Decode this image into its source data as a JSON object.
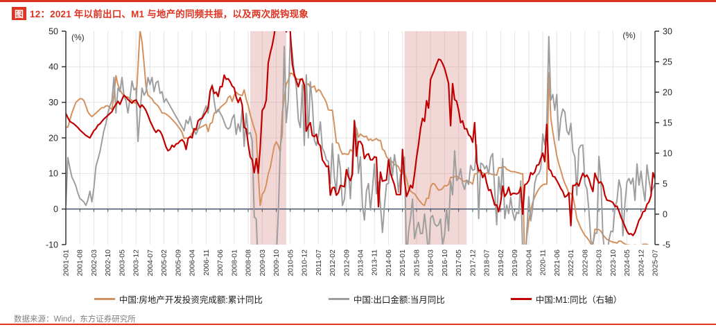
{
  "title": {
    "chip": "图",
    "text": "12：2021 年以前出口、M1 与地产的同频共振，以及两次脱钩现象"
  },
  "source": {
    "text": "数据来源：Wind，东方证券研究所"
  },
  "colors": {
    "accent_red": "#DF3321",
    "band_pink": "#D98C8C",
    "zero_line_navy": "#44546A",
    "grid_gray": "#E2E2E2",
    "axis_dark": "#333333",
    "series_orange": "#D4915D",
    "series_gray": "#9E9E9E",
    "series_red": "#C00000"
  },
  "legend": {
    "items": [
      {
        "label": "中国:房地产开发投资完成额:累计同比",
        "color": "#D4915D"
      },
      {
        "label": "中国:出口金额:当月同比",
        "color": "#9E9E9E"
      },
      {
        "label": "中国:M1:同比（右轴）",
        "color": "#C00000"
      }
    ]
  },
  "chart_data": {
    "type": "line",
    "title": "2021 年以前出口、M1 与地产的同频共振，以及两次脱钩现象",
    "x_start": "2001-01",
    "x_end": "2025-07",
    "x_tick_labels": [
      "2001-01",
      "2001-08",
      "2002-03",
      "2002-10",
      "2003-05",
      "2003-12",
      "2004-07",
      "2005-02",
      "2005-09",
      "2006-04",
      "2006-11",
      "2007-06",
      "2008-01",
      "2008-08",
      "2009-03",
      "2009-10",
      "2010-05",
      "2010-12",
      "2011-07",
      "2012-02",
      "2012-09",
      "2013-04",
      "2013-11",
      "2014-06",
      "2015-01",
      "2015-08",
      "2016-03",
      "2016-10",
      "2017-05",
      "2017-12",
      "2018-07",
      "2019-02",
      "2019-09",
      "2020-04",
      "2020-11",
      "2021-06",
      "2022-01",
      "2022-08",
      "2023-03",
      "2023-10",
      "2024-05",
      "2024-12",
      "2025-07"
    ],
    "left_axis": {
      "label": "(%)",
      "ticks": [
        50,
        40,
        30,
        20,
        10,
        0,
        -10
      ],
      "range": [
        -10,
        50
      ]
    },
    "right_axis": {
      "label": "(%)",
      "ticks": [
        30,
        25,
        20,
        15,
        10,
        5,
        0,
        -5
      ],
      "range": [
        -5,
        30
      ]
    },
    "grid": true,
    "legend_position": "bottom",
    "band_color": "#D98C8C",
    "shaded_bands": [
      {
        "from": "2008-09",
        "to": "2010-03"
      },
      {
        "from": "2015-02",
        "to": "2017-09"
      }
    ],
    "series": [
      {
        "name": "中国:房地产开发投资完成额:累计同比",
        "axis": "left",
        "color": "#D4915D",
        "width": 2,
        "values": [
          23,
          23,
          25,
          27,
          28.5,
          30,
          30.5,
          31,
          31,
          30.5,
          29,
          27.3,
          26.5,
          26,
          26.5,
          27,
          27.5,
          28,
          28.5,
          28.5,
          29,
          29,
          28.5,
          28,
          32,
          37.5,
          34.9,
          33.5,
          32.5,
          32,
          31.5,
          31.5,
          31,
          30.5,
          30,
          29.7,
          40,
          50.2,
          47,
          41,
          34.5,
          32,
          31.5,
          31,
          30,
          29.5,
          29,
          28.1,
          27,
          27,
          26.7,
          26.3,
          25.8,
          25.2,
          24.6,
          24,
          23.2,
          22.5,
          21.5,
          19.8,
          20,
          19.9,
          20.2,
          21.3,
          21.9,
          22.2,
          22.5,
          22.9,
          23.2,
          23.5,
          23.8,
          21.8,
          24,
          24.3,
          26.9,
          27.4,
          27.5,
          28.5,
          29,
          29.5,
          30,
          31.4,
          31.8,
          30.2,
          32,
          32.9,
          32.3,
          32.1,
          31.9,
          33.5,
          30.9,
          29.1,
          26.5,
          24.6,
          22.7,
          20.9,
          10,
          1,
          4.1,
          4.9,
          6.8,
          9.9,
          11.6,
          14.7,
          17.7,
          18.9,
          17.8,
          16.1,
          27,
          31.1,
          35.1,
          36.2,
          38.2,
          38.1,
          37.2,
          36.7,
          36.4,
          36.5,
          36.7,
          33.2,
          35,
          35.2,
          34.1,
          34.3,
          34.6,
          32.9,
          33.6,
          33.2,
          32,
          31.1,
          29.9,
          27.9,
          27.8,
          27.8,
          23.5,
          18.7,
          18.5,
          16.6,
          15.4,
          15.6,
          15.4,
          15.4,
          16.7,
          16.2,
          22.8,
          22.8,
          20.2,
          21.1,
          20.6,
          20.3,
          20.5,
          19.3,
          19.7,
          19.2,
          19.5,
          19.8,
          19.3,
          19.3,
          16.8,
          16.4,
          14.7,
          14.1,
          13.7,
          13.2,
          12.5,
          12.4,
          11.9,
          10.5,
          10.4,
          10.4,
          8.5,
          6,
          5.1,
          4.6,
          4.3,
          3.5,
          2.6,
          2,
          1.3,
          1,
          3,
          3,
          6.2,
          7.2,
          7,
          6.1,
          5.3,
          5.4,
          5.8,
          6.6,
          6.5,
          6.9,
          8.9,
          8.9,
          9.1,
          9.3,
          8.8,
          8.5,
          7.9,
          7.8,
          8.1,
          7.8,
          7.5,
          7,
          9.9,
          9.9,
          10.4,
          10.3,
          10.2,
          9.7,
          10.2,
          10.1,
          9.9,
          9.7,
          9.7,
          9.5,
          11.6,
          11.6,
          11.8,
          11.9,
          11.2,
          10.9,
          10.6,
          10.5,
          10.5,
          10.3,
          10.2,
          9.9,
          9.9,
          -16.3,
          -7.7,
          -3.3,
          -0.3,
          1.9,
          3.4,
          4.6,
          5.6,
          6.3,
          6.8,
          7,
          7,
          38.3,
          25.6,
          21.6,
          18.3,
          15,
          12.7,
          10.9,
          8.8,
          7.2,
          6,
          4.4,
          4.4,
          3.7,
          0.7,
          -2.7,
          -4,
          -5.4,
          -6.4,
          -7.4,
          -8,
          -8.8,
          -9.8,
          -10,
          -5.7,
          -5.7,
          -5.8,
          -6.2,
          -7.2,
          -7.9,
          -8.5,
          -8.8,
          -9.1,
          -9.3,
          -9.4,
          -9.6,
          -9,
          -9,
          -9.5,
          -9.8,
          -10.1,
          -10.1,
          -10.2,
          -10.2,
          -10.1,
          -10.3,
          -10.4,
          -10.6,
          -9.9,
          -9.9,
          -9.9,
          -10.3,
          -10.7,
          -11.2,
          -12
        ]
      },
      {
        "name": "中国:出口金额:当月同比",
        "axis": "left",
        "color": "#9E9E9E",
        "width": 2,
        "values": [
          1,
          14.5,
          11.5,
          9,
          7.8,
          6.5,
          4.5,
          3,
          2.5,
          2,
          1,
          2.5,
          5,
          2,
          6,
          12,
          14,
          16,
          19,
          22,
          24,
          27,
          29,
          30.5,
          37,
          27,
          34,
          33,
          37,
          32,
          30.5,
          27,
          31,
          36,
          33.5,
          34,
          19,
          27,
          34,
          32,
          33,
          37,
          35,
          37,
          33,
          35.5,
          36,
          32.5,
          33,
          30,
          31,
          30,
          29,
          28,
          27,
          26,
          25,
          24,
          23,
          22,
          25,
          24,
          26,
          23,
          22,
          21,
          22.5,
          24,
          26,
          27.5,
          29,
          27,
          33,
          35,
          30.5,
          27,
          28,
          27,
          26,
          24.5,
          23,
          22.5,
          23,
          25.5,
          26.5,
          21,
          24,
          21.8,
          28.1,
          17.6,
          26.9,
          21.1,
          21.5,
          19.2,
          -2.2,
          -2.8,
          -17.5,
          -25.7,
          -17.1,
          -22.6,
          -26.4,
          -21.4,
          -23,
          -23.4,
          -15.2,
          -13.8,
          -1.2,
          17.7,
          21,
          45.7,
          24.3,
          30.5,
          48.5,
          43.9,
          38.1,
          34.4,
          25.1,
          22.9,
          34.9,
          17.9,
          37.7,
          20,
          35.8,
          29.9,
          19.4,
          17.9,
          20.4,
          24.5,
          17.1,
          15.9,
          13.8,
          13.4,
          7,
          18.4,
          8.9,
          4.9,
          15.3,
          11.3,
          1,
          2.7,
          9.9,
          11.6,
          2.9,
          14.1,
          25,
          21.8,
          10,
          14.7,
          1,
          -3.1,
          5.1,
          7.2,
          -0.3,
          5.6,
          12.7,
          4.3,
          7.6,
          1,
          -6.6,
          0.9,
          7,
          7.2,
          14.5,
          9.4,
          15.3,
          11.6,
          4.7,
          9.7,
          9.8,
          14.6,
          -14.6,
          -6.4,
          -2.5,
          2.8,
          -8.3,
          -5.5,
          -3.7,
          -6.9,
          -6.8,
          -1.4,
          -6.6,
          -13,
          -2.5,
          -1.8,
          -4.1,
          -4.8,
          -4.4,
          -2.8,
          -10,
          -7.3,
          0.1,
          -6.1,
          7.9,
          4,
          16.4,
          8,
          8.7,
          11.3,
          7.2,
          5.5,
          8.1,
          6.9,
          12.3,
          10.9,
          11.1,
          18,
          -2.7,
          12.9,
          12.6,
          11.3,
          12.2,
          9.8,
          14.5,
          15.6,
          5.4,
          -4.4,
          9.1,
          4,
          14.2,
          -2.7,
          1.1,
          -1.3,
          3.3,
          -1,
          -3.2,
          -0.9,
          -1.3,
          7.9,
          -13,
          -17.2,
          -6.6,
          3.5,
          -3.3,
          0.5,
          7.2,
          9.5,
          9.9,
          11.4,
          21.1,
          18.1,
          24.8,
          48.5,
          30.6,
          32.2,
          27.8,
          32.2,
          19.3,
          25.6,
          28.1,
          27.3,
          22,
          20.9,
          24.1,
          16.3,
          14.7,
          3.9,
          16.9,
          17.9,
          18,
          7.1,
          5.7,
          -0.3,
          -8.9,
          -9.9,
          -6.8,
          -6.8,
          14.8,
          8.5,
          -7.5,
          -12.4,
          -14.5,
          -8.8,
          -6.2,
          -6.4,
          0.5,
          2.3,
          8.2,
          5.6,
          -7.5,
          1.5,
          7.6,
          8.6,
          7,
          8.7,
          2.4,
          12.7,
          6.7,
          10.7,
          6,
          2.3,
          12.4,
          8.1,
          4.8,
          5.8,
          7.2
        ]
      },
      {
        "name": "中国:M1:同比（右轴）",
        "axis": "right",
        "color": "#C00000",
        "width": 2.2,
        "values": [
          16.5,
          15.8,
          15.2,
          15,
          14.8,
          14.5,
          14.2,
          13.8,
          13.5,
          13.2,
          12.9,
          12.7,
          12.5,
          13.1,
          13.7,
          14,
          14.6,
          14.8,
          15.2,
          15.6,
          15.9,
          16.2,
          16.5,
          16.8,
          17.5,
          18,
          18.5,
          18,
          18.8,
          19.5,
          19.2,
          18.8,
          18.5,
          18.2,
          18.6,
          18.7,
          18.1,
          17.5,
          17.9,
          17.5,
          17,
          16.2,
          15.3,
          14.6,
          13.9,
          13.4,
          13.8,
          13.6,
          13,
          12,
          11,
          10.4,
          10.6,
          11.3,
          11,
          11.5,
          11.6,
          12,
          12.2,
          11.8,
          10.6,
          12.4,
          12.7,
          12.5,
          14,
          13.9,
          15.3,
          15.6,
          15.7,
          16.3,
          16.8,
          17.5,
          20.2,
          21,
          19.8,
          20,
          19.3,
          20.9,
          20.9,
          22.8,
          22.1,
          22.2,
          21.7,
          21,
          20.7,
          19.2,
          18.3,
          19.1,
          17.9,
          14.2,
          14,
          11.5,
          9.4,
          8.9,
          6.8,
          9.1,
          6.7,
          10.9,
          17,
          17.5,
          18.7,
          24.8,
          26.4,
          27.7,
          29.5,
          32,
          34.6,
          32.4,
          39,
          35,
          29.9,
          31.3,
          29.9,
          24.6,
          22.9,
          21.9,
          20.9,
          22.1,
          22.1,
          21.2,
          13.6,
          14.5,
          15,
          12.9,
          12.7,
          13.1,
          11.6,
          11.2,
          8.9,
          8.4,
          7.8,
          7.9,
          3.1,
          4.3,
          4.4,
          3.1,
          3.5,
          4.7,
          4.6,
          4.5,
          7.3,
          6.1,
          5.5,
          6.5,
          15.3,
          9.5,
          11.9,
          11.9,
          11.3,
          9.1,
          9.7,
          9.9,
          8.9,
          8.9,
          9.4,
          9.3,
          1.2,
          6.9,
          5.4,
          5.5,
          5.6,
          8.9,
          6.7,
          5.7,
          4.8,
          3.2,
          3.2,
          3.2,
          10.6,
          5.6,
          2.9,
          3.7,
          4.7,
          4.3,
          6.6,
          9.3,
          11.4,
          14,
          15.7,
          15.2,
          18.6,
          17.4,
          22.1,
          22.9,
          23.7,
          24.6,
          25.4,
          25.3,
          24.7,
          23.9,
          22.7,
          21.4,
          14.5,
          21.4,
          18.8,
          18.5,
          17,
          15,
          15.3,
          14,
          14,
          13,
          12.7,
          11.8,
          15,
          8.5,
          7.1,
          7.2,
          6,
          6.6,
          5.1,
          3.9,
          4,
          2.7,
          1.5,
          1.5,
          0.4,
          2,
          4.6,
          2.9,
          3.4,
          4.4,
          3.1,
          3.4,
          3.4,
          3.3,
          3.5,
          4.4,
          0,
          4.8,
          5,
          5.5,
          6.8,
          6.5,
          6.9,
          8,
          8.1,
          9.1,
          10,
          8.6,
          14.7,
          7.4,
          7.1,
          6.2,
          6.1,
          5.5,
          4.9,
          4.2,
          3.7,
          2.8,
          3,
          3.5,
          -1.9,
          4.7,
          4.7,
          5.1,
          4.6,
          5.8,
          6.7,
          6.1,
          6.4,
          5.8,
          4.6,
          3.7,
          6.7,
          5.8,
          5.1,
          5.3,
          4.7,
          3.1,
          2.3,
          2.2,
          2.1,
          1.9,
          1.3,
          1.3,
          0.5,
          -0.5,
          -1.2,
          -2,
          -2.8,
          -3.3,
          -3.2,
          -3.5,
          -3,
          -2,
          -1,
          -0.5,
          0.4,
          0.5,
          1.6,
          2,
          3,
          6.8,
          5.8
        ]
      }
    ]
  }
}
